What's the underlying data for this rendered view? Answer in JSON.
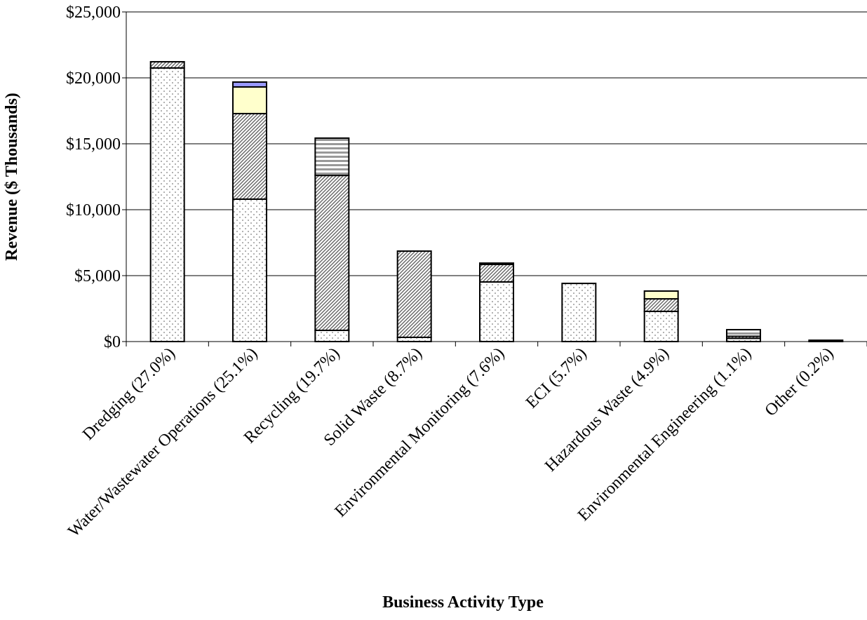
{
  "chart_data": {
    "type": "stacked_bar",
    "y_label": "Revenue ($ Thousands)",
    "x_label": "Business Activity Type",
    "categories": [
      "Dredging (27.0%)",
      "Water/Wastewater Operations (25.1%)",
      "Recycling (19.7%)",
      "Solid Waste (8.7%)",
      "Environmental Monitoring (7.6%)",
      "ECI (5.7%)",
      "Hazardous Waste (4.9%)",
      "Environmental Engineering (1.1%)",
      "Other (0.2%)"
    ],
    "series": [
      {
        "color": "#ffffff",
        "pattern": "dots",
        "values": [
          20750,
          10800,
          850,
          320,
          4520,
          4410,
          2290,
          250,
          100
        ]
      },
      {
        "color": "#ffffff",
        "pattern": "diag",
        "values": [
          470,
          6490,
          11750,
          6540,
          1330,
          0,
          950,
          150,
          0
        ]
      },
      {
        "color": "#ffffcc",
        "pattern": "solid",
        "values": [
          0,
          2020,
          0,
          0,
          0,
          0,
          590,
          0,
          0
        ]
      },
      {
        "color": "#9999ff",
        "pattern": "solid",
        "values": [
          0,
          370,
          0,
          0,
          0,
          0,
          0,
          0,
          0
        ]
      },
      {
        "color": "#ffffff",
        "pattern": "hstripe",
        "values": [
          0,
          0,
          2830,
          0,
          100,
          0,
          0,
          500,
          0
        ]
      }
    ],
    "ylim": [
      0,
      25000
    ],
    "yticks": [
      {
        "value": 0,
        "label": "$0"
      },
      {
        "value": 5000,
        "label": "$5,000"
      },
      {
        "value": 10000,
        "label": "$10,000"
      },
      {
        "value": 15000,
        "label": "$15,000"
      },
      {
        "value": 20000,
        "label": "$20,000"
      },
      {
        "value": 25000,
        "label": "$25,000"
      }
    ],
    "grid": true
  }
}
